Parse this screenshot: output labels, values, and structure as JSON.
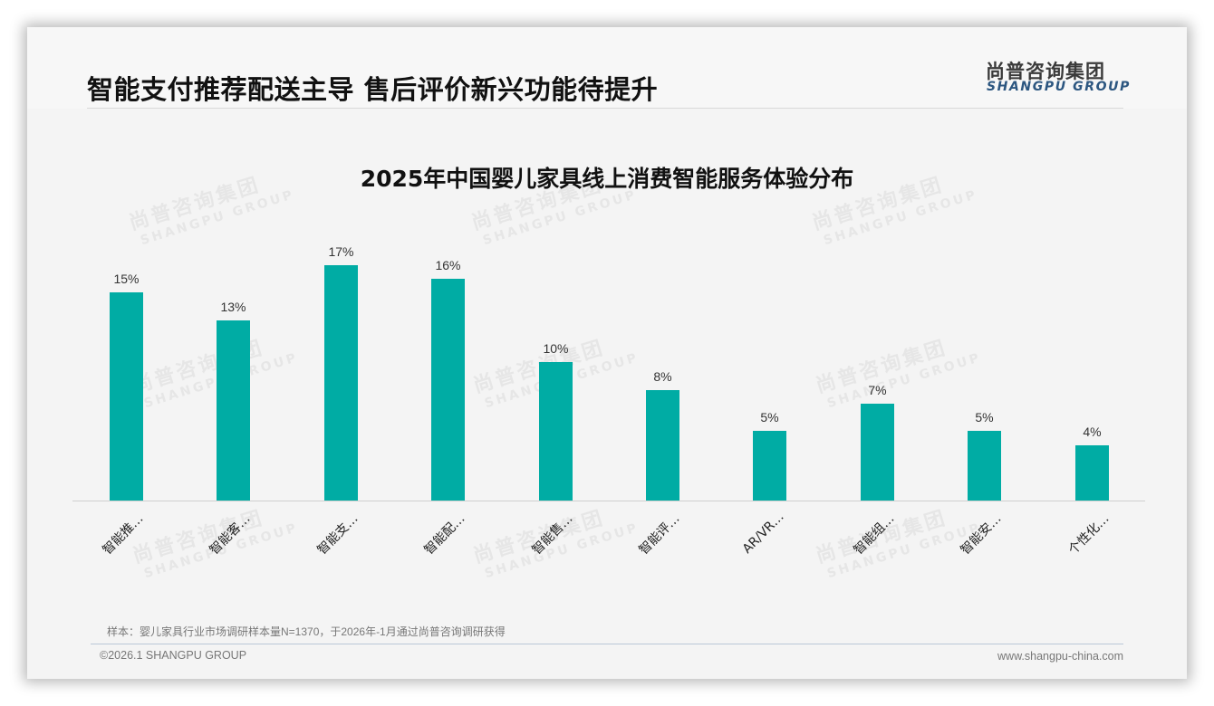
{
  "header": {
    "title": "智能支付推荐配送主导 售后评价新兴功能待提升",
    "logo_cn": "尚普咨询集团",
    "logo_en": "SHANGPU GROUP"
  },
  "watermark": {
    "cn": "尚普咨询集团",
    "en": "SHANGPU GROUP"
  },
  "colors": {
    "bar": "#00aca4",
    "logo_en": "#2c5680",
    "title": "#111111"
  },
  "chart_data": {
    "type": "bar",
    "title": "2025年中国婴儿家具线上消费智能服务体验分布",
    "categories": [
      "智能推…",
      "智能客…",
      "智能支…",
      "智能配…",
      "智能售…",
      "智能评…",
      "AR/VR…",
      "智能组…",
      "智能安…",
      "个性化…"
    ],
    "values": [
      15,
      13,
      17,
      16,
      10,
      8,
      5,
      7,
      5,
      4
    ],
    "value_labels": [
      "15%",
      "13%",
      "17%",
      "16%",
      "10%",
      "8%",
      "5%",
      "7%",
      "5%",
      "4%"
    ],
    "unit": "%",
    "xlabel": "",
    "ylabel": "",
    "ylim": [
      0,
      17
    ],
    "grid": false,
    "legend": "none"
  },
  "footer": {
    "note": "样本：婴儿家具行业市场调研样本量N=1370，于2026年-1月通过尚普咨询调研获得",
    "copyright": "©2026.1 SHANGPU GROUP",
    "website": "www.shangpu-china.com"
  }
}
